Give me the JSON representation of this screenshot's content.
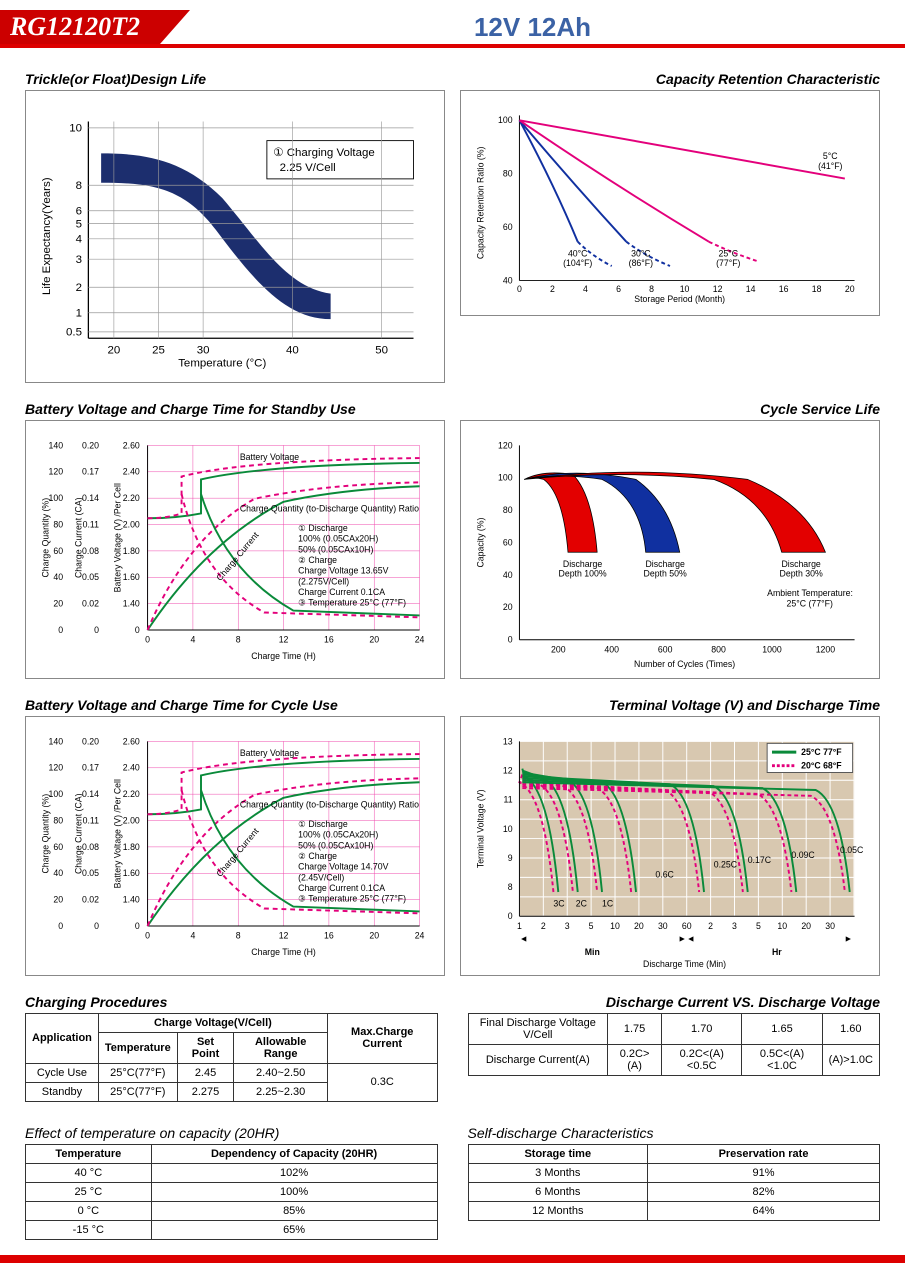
{
  "header": {
    "model": "RG12120T2",
    "spec": "12V 12Ah"
  },
  "chart1": {
    "title": "Trickle(or Float)Design Life",
    "xlabel": "Temperature (°C)",
    "ylabel": "Life Expectancy(Years)",
    "xticks": [
      "20",
      "25",
      "30",
      "40",
      "50"
    ],
    "yticks": [
      "0.5",
      "1",
      "2",
      "3",
      "4",
      "5",
      "6",
      "8",
      "10"
    ],
    "annot": "① Charging Voltage\n2.25 V/Cell",
    "band_color": "#1c2e6e"
  },
  "chart2": {
    "title": "Capacity Retention Characteristic",
    "xlabel": "Storage Period (Month)",
    "ylabel": "Capacity Retention Ratio (%)",
    "xticks": [
      "0",
      "2",
      "4",
      "6",
      "8",
      "10",
      "12",
      "14",
      "16",
      "18",
      "20"
    ],
    "yticks": [
      "40",
      "60",
      "80",
      "100"
    ],
    "lines": [
      {
        "label": "40°C (104°F)",
        "color": "#1030a0"
      },
      {
        "label": "30°C (86°F)",
        "color": "#1030a0"
      },
      {
        "label": "25°C (77°F)",
        "color": "#e3007b"
      },
      {
        "label": "5°C (41°F)",
        "color": "#e3007b"
      }
    ]
  },
  "chart3": {
    "title": "Battery Voltage and Charge Time for Standby Use",
    "xlabel": "Charge Time (H)",
    "yl1": "Charge Quantity (%)",
    "yl2": "Charge Current (CA)",
    "yl3": "Battery Voltage (V) /Per Cell",
    "xticks": [
      "0",
      "4",
      "8",
      "12",
      "16",
      "20",
      "24"
    ],
    "y1ticks": [
      "0",
      "20",
      "40",
      "60",
      "80",
      "100",
      "120",
      "140"
    ],
    "y2ticks": [
      "0",
      "0.02",
      "0.05",
      "0.08",
      "0.11",
      "0.14",
      "0.17",
      "0.20"
    ],
    "y3ticks": [
      "0",
      "1.40",
      "1.60",
      "1.80",
      "2.00",
      "2.20",
      "2.40",
      "2.60"
    ],
    "notes": [
      "① Discharge",
      "100% (0.05CAx20H)",
      "50% (0.05CAx10H)",
      "② Charge",
      "Charge Voltage 13.65V",
      "(2.275V/Cell)",
      "Charge Current 0.1CA",
      "③ Temperature 25°C (77°F)"
    ],
    "lbl_bv": "Battery Voltage",
    "lbl_cq": "Charge Quantity (to-Discharge Quantity) Ratio",
    "lbl_cc": "Charge Current",
    "col100": "#0a8a3a",
    "col50": "#e3007b"
  },
  "chart4": {
    "title": "Cycle Service Life",
    "xlabel": "Number of Cycles (Times)",
    "ylabel": "Capacity (%)",
    "xticks": [
      "200",
      "400",
      "600",
      "800",
      "1000",
      "1200"
    ],
    "yticks": [
      "0",
      "20",
      "40",
      "60",
      "80",
      "100",
      "120"
    ],
    "bands": [
      {
        "label": "Discharge Depth 100%",
        "color": "#e30000"
      },
      {
        "label": "Discharge Depth 50%",
        "color": "#1030a0"
      },
      {
        "label": "Discharge Depth 30%",
        "color": "#e30000"
      }
    ],
    "ambient": "Ambient Temperature: 25°C (77°F)"
  },
  "chart5": {
    "title": "Battery Voltage and Charge Time for Cycle Use",
    "xlabel": "Charge Time (H)",
    "notes": [
      "① Discharge",
      "100% (0.05CAx20H)",
      "50% (0.05CAx10H)",
      "② Charge",
      "Charge Voltage 14.70V",
      "(2.45V/Cell)",
      "Charge Current 0.1CA",
      "③ Temperature 25°C (77°F)"
    ]
  },
  "chart6": {
    "title": "Terminal Voltage (V) and Discharge Time",
    "xlabel": "Discharge Time (Min)",
    "ylabel": "Terminal Voltage (V)",
    "yticks": [
      "0",
      "8",
      "9",
      "10",
      "11",
      "12",
      "13"
    ],
    "xlabels_min": [
      "1",
      "2",
      "3",
      "5",
      "10",
      "20",
      "30",
      "60"
    ],
    "xlabels_hr": [
      "2",
      "3",
      "5",
      "10",
      "20",
      "30"
    ],
    "legend": [
      {
        "l": "25°C 77°F",
        "c": "#0a8a3a"
      },
      {
        "l": "20°C 68°F",
        "c": "#e3007b"
      }
    ],
    "rates": [
      "3C",
      "2C",
      "1C",
      "0.6C",
      "0.25C",
      "0.17C",
      "0.09C",
      "0.05C"
    ],
    "unit_min": "Min",
    "unit_hr": "Hr",
    "bg": "#d8c8b0"
  },
  "table1": {
    "title": "Charging Procedures",
    "h_app": "Application",
    "h_cv": "Charge Voltage(V/Cell)",
    "h_max": "Max.Charge Current",
    "h_temp": "Temperature",
    "h_sp": "Set Point",
    "h_ar": "Allowable Range",
    "rows": [
      {
        "app": "Cycle Use",
        "temp": "25°C(77°F)",
        "sp": "2.45",
        "ar": "2.40~2.50"
      },
      {
        "app": "Standby",
        "temp": "25°C(77°F)",
        "sp": "2.275",
        "ar": "2.25~2.30"
      }
    ],
    "max": "0.3C"
  },
  "table2": {
    "title": "Discharge Current VS. Discharge Voltage",
    "h1": "Final Discharge Voltage V/Cell",
    "h2": "Discharge Current(A)",
    "vals": [
      "1.75",
      "1.70",
      "1.65",
      "1.60"
    ],
    "curr": [
      "0.2C>(A)",
      "0.2C<(A)<0.5C",
      "0.5C<(A)<1.0C",
      "(A)>1.0C"
    ]
  },
  "table3": {
    "title": "Effect of temperature on capacity (20HR)",
    "h1": "Temperature",
    "h2": "Dependency of Capacity (20HR)",
    "rows": [
      [
        "40 °C",
        "102%"
      ],
      [
        "25 °C",
        "100%"
      ],
      [
        "0 °C",
        "85%"
      ],
      [
        "-15 °C",
        "65%"
      ]
    ]
  },
  "table4": {
    "title": "Self-discharge Characteristics",
    "h1": "Storage time",
    "h2": "Preservation rate",
    "rows": [
      [
        "3 Months",
        "91%"
      ],
      [
        "6 Months",
        "82%"
      ],
      [
        "12 Months",
        "64%"
      ]
    ]
  }
}
